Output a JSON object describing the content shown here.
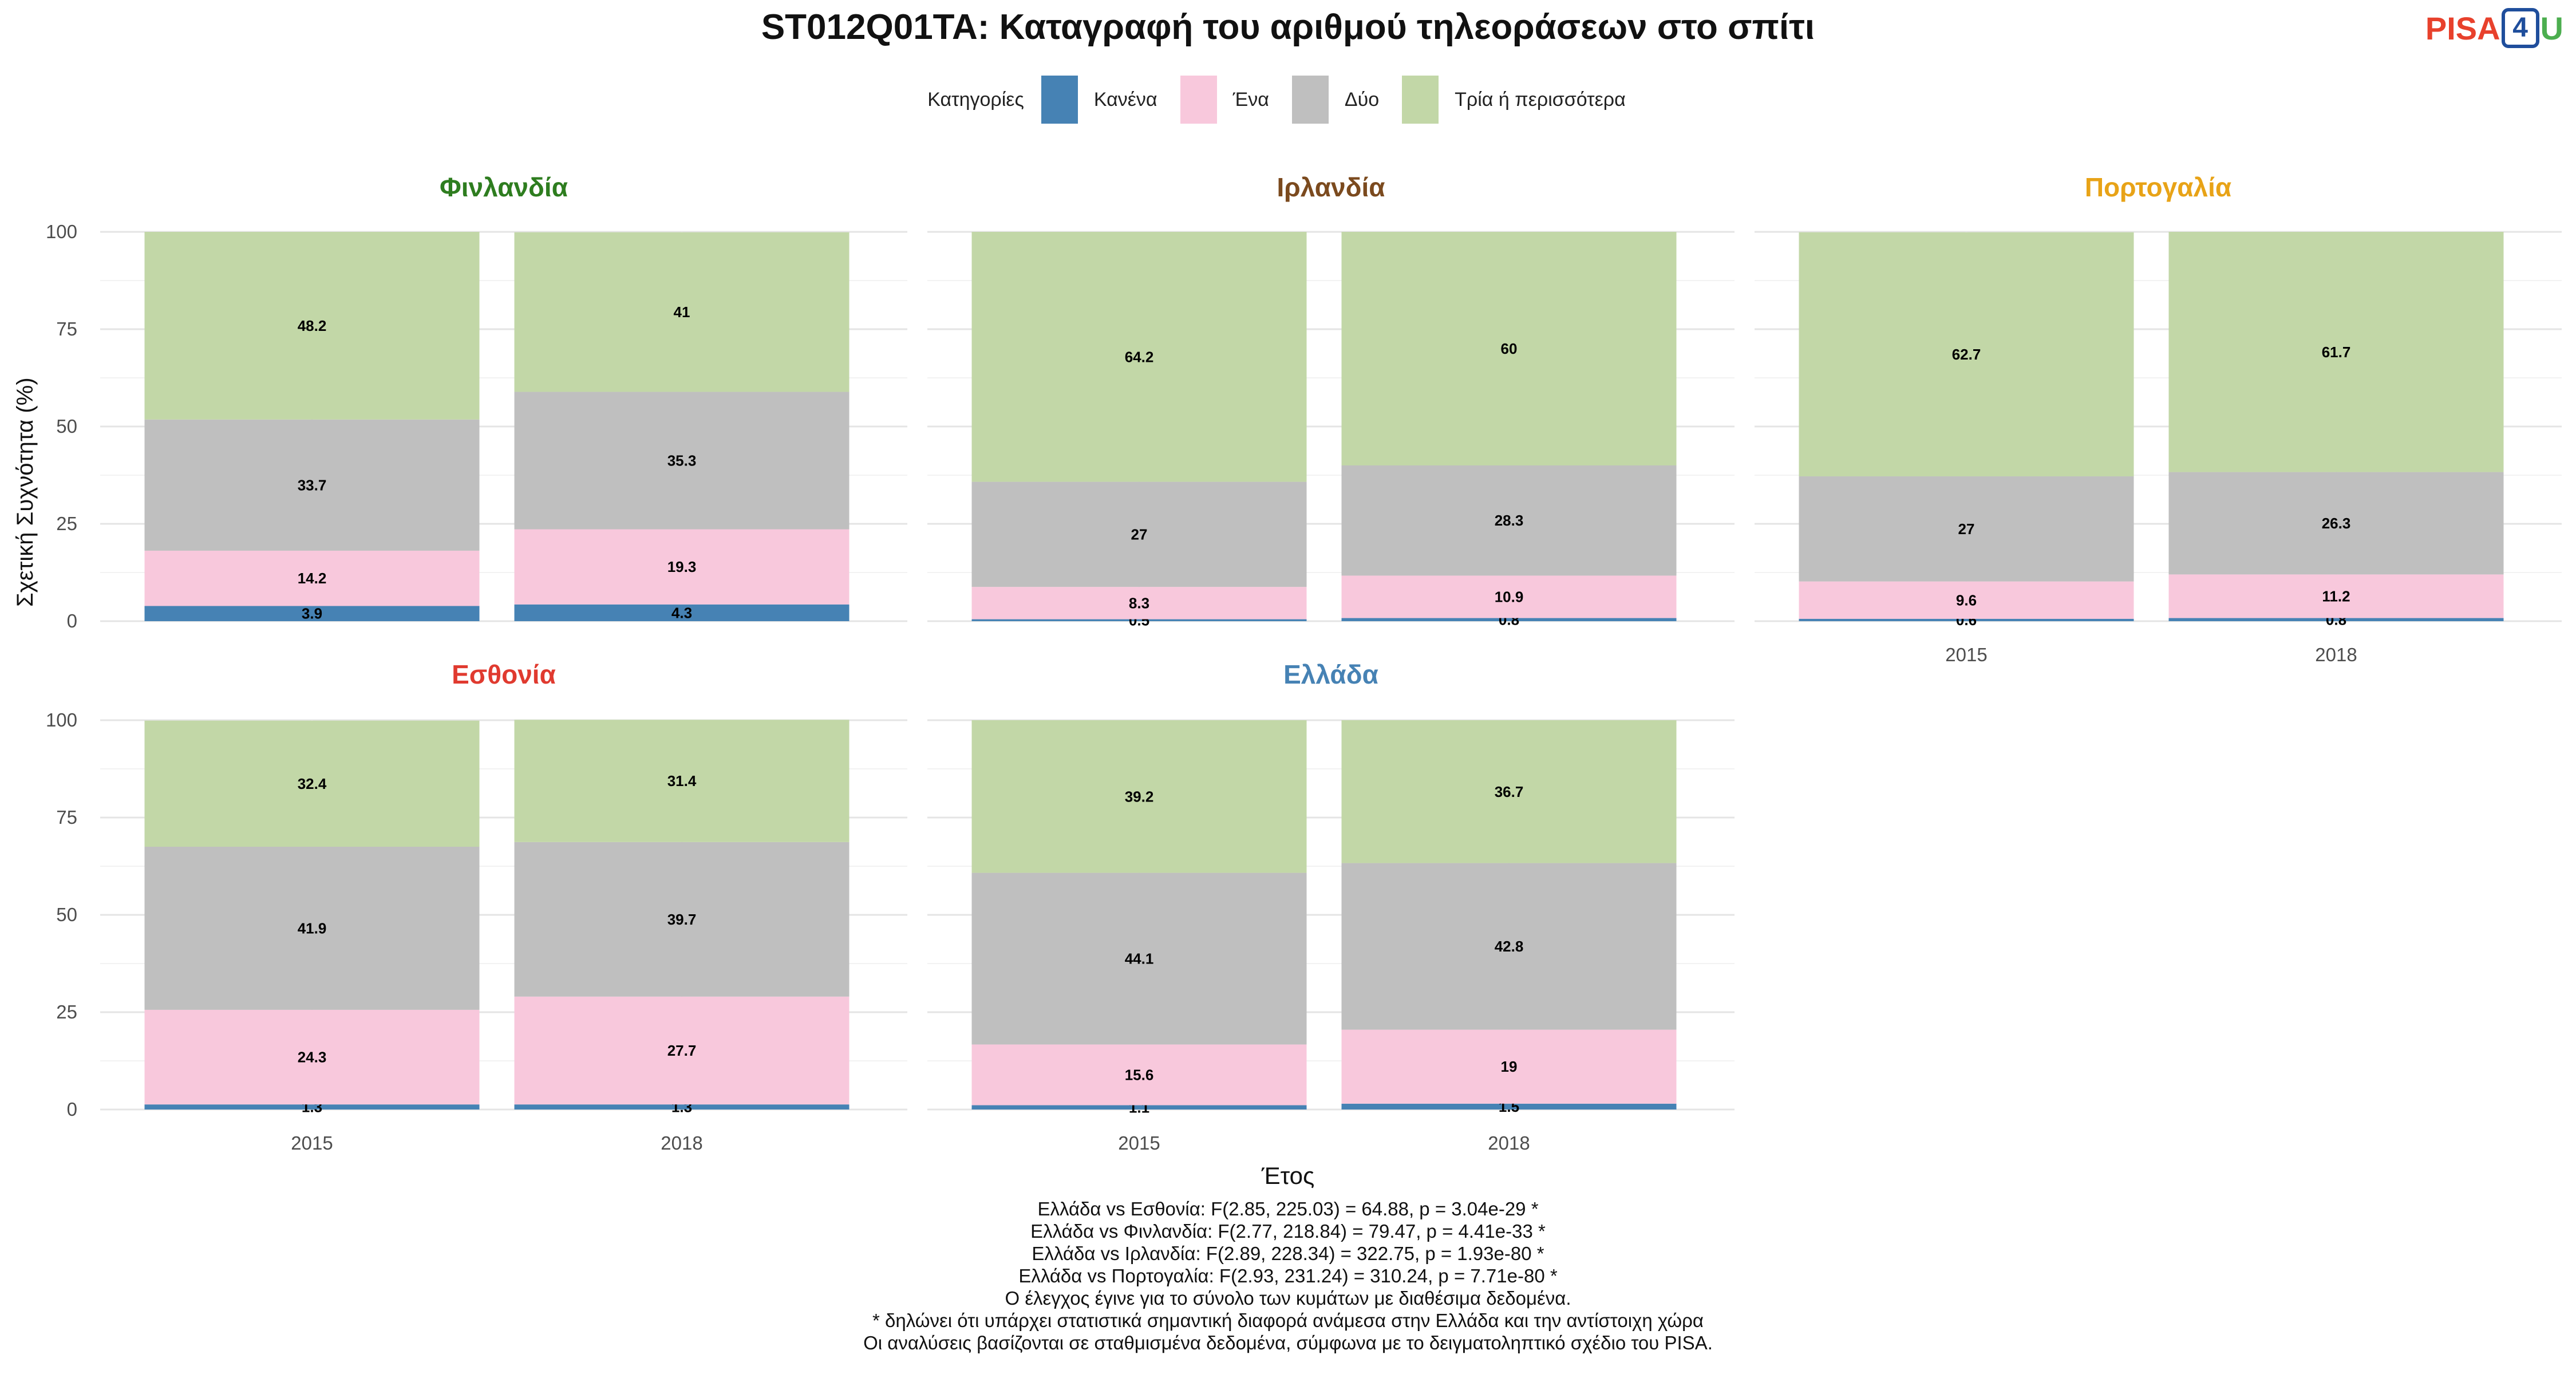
{
  "title": "ST012Q01TA: Καταγραφή του αριθμού τηλεοράσεων στο σπίτι",
  "logo": {
    "pisa": "PISA",
    "four": "4",
    "u": "U"
  },
  "legend": {
    "title": "Κατηγορίες",
    "items": [
      {
        "label": "Κανένα",
        "color": "#4682b4"
      },
      {
        "label": "Ένα",
        "color": "#f8c8dc"
      },
      {
        "label": "Δύο",
        "color": "#bfbfbf"
      },
      {
        "label": "Τρία ή περισσότερα",
        "color": "#c2d7a7"
      }
    ]
  },
  "axes": {
    "ylabel": "Σχετική Συχνότητα (%)",
    "xlabel": "Έτος"
  },
  "chart_data": {
    "type": "bar",
    "stacked": true,
    "ylim": [
      0,
      100
    ],
    "yticks": [
      0,
      25,
      50,
      75,
      100
    ],
    "categories": [
      "2015",
      "2018"
    ],
    "series_names": [
      "Κανένα",
      "Ένα",
      "Δύο",
      "Τρία ή περισσότερα"
    ],
    "panels": [
      {
        "country": "Φινλανδία",
        "title_color": "#2e7d1f",
        "values": {
          "2015": [
            3.9,
            14.2,
            33.7,
            48.2
          ],
          "2018": [
            4.3,
            19.3,
            35.3,
            41
          ]
        }
      },
      {
        "country": "Ιρλανδία",
        "title_color": "#7b4a1e",
        "values": {
          "2015": [
            0.5,
            8.3,
            27,
            64.2
          ],
          "2018": [
            0.8,
            10.9,
            28.3,
            60
          ]
        }
      },
      {
        "country": "Πορτογαλία",
        "title_color": "#e8a317",
        "values": {
          "2015": [
            0.6,
            9.6,
            27,
            62.7
          ],
          "2018": [
            0.8,
            11.2,
            26.3,
            61.7
          ]
        }
      },
      {
        "country": "Εσθονία",
        "title_color": "#e03a2f",
        "values": {
          "2015": [
            1.3,
            24.3,
            41.9,
            32.4
          ],
          "2018": [
            1.3,
            27.7,
            39.7,
            31.4
          ]
        }
      },
      {
        "country": "Ελλάδα",
        "title_color": "#4682b4",
        "values": {
          "2015": [
            1.1,
            15.6,
            44.1,
            39.2
          ],
          "2018": [
            1.5,
            19,
            42.8,
            36.7
          ]
        }
      }
    ],
    "grid": true
  },
  "footnotes": [
    "Ελλάδα vs Εσθονία: F(2.85, 225.03) = 64.88, p = 3.04e-29 *",
    "Ελλάδα vs Φινλανδία: F(2.77, 218.84) = 79.47, p = 4.41e-33 *",
    "Ελλάδα vs Ιρλανδία: F(2.89, 228.34) = 322.75, p = 1.93e-80 *",
    "Ελλάδα vs Πορτογαλία: F(2.93, 231.24) = 310.24, p = 7.71e-80 *",
    "Ο έλεγχος έγινε για το σύνολο των κυμάτων με διαθέσιμα δεδομένα.",
    "* δηλώνει ότι υπάρχει στατιστικά σημαντική διαφορά ανάμεσα στην Ελλάδα και την αντίστοιχη χώρα",
    "Οι αναλύσεις βασίζονται σε σταθμισμένα δεδομένα, σύμφωνα με το δειγματοληπτικό σχέδιο του PISA."
  ]
}
